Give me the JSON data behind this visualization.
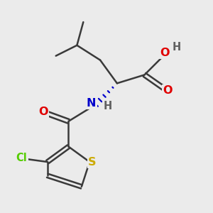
{
  "background_color": "#ebebeb",
  "atom_colors": {
    "C": "#3a3a3a",
    "O": "#e00000",
    "N": "#0000cc",
    "S": "#ccaa00",
    "Cl": "#55cc00",
    "H": "#606060"
  },
  "bond_color": "#3a3a3a",
  "bond_width": 1.8,
  "font_size": 10.5
}
